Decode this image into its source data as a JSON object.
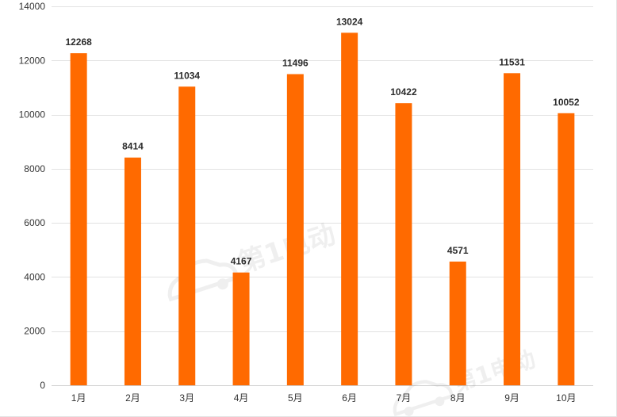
{
  "chart_data": {
    "type": "bar",
    "categories": [
      "1月",
      "2月",
      "3月",
      "4月",
      "5月",
      "6月",
      "7月",
      "8月",
      "9月",
      "10月"
    ],
    "values": [
      12268,
      8414,
      11034,
      4167,
      11496,
      13024,
      10422,
      4571,
      11531,
      10052
    ],
    "data_labels": [
      "12268",
      "8414",
      "11034",
      "4167",
      "11496",
      "13024",
      "10422",
      "4571",
      "11531",
      "10052"
    ],
    "title": "",
    "xlabel": "",
    "ylabel": "",
    "ylim": [
      0,
      14000
    ],
    "yticks": [
      0,
      2000,
      4000,
      6000,
      8000,
      10000,
      12000,
      14000
    ],
    "ytick_labels": [
      "0",
      "2000",
      "4000",
      "6000",
      "8000",
      "10000",
      "12000",
      "14000"
    ],
    "grid": true,
    "legend": "none",
    "bar_color": "#ff6a00",
    "gridline_color": "#e2e2e2"
  },
  "watermark": {
    "text": "第1电动",
    "icon": "car-logo-icon"
  }
}
